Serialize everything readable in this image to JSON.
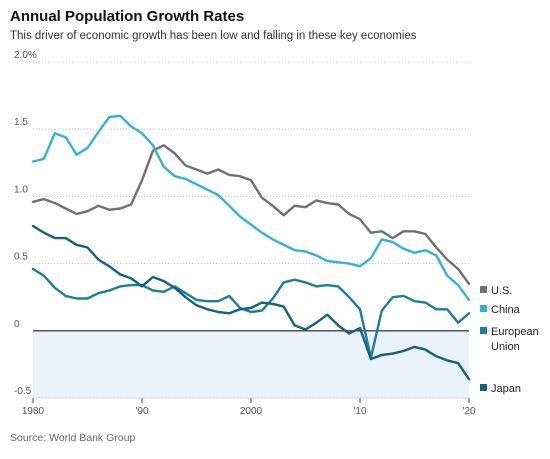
{
  "header": {
    "title": "Annual Population Growth Rates",
    "subtitle": "This driver of economic growth has been low and falling in these key economies"
  },
  "footer": {
    "source": "Source: World Bank Group"
  },
  "colors": {
    "US": "#707070",
    "China": "#33b2d6",
    "EU": "#1c7e9a",
    "Japan": "#17607f",
    "negative_shade": "#eaf2fb",
    "grid": "#b8b8b8",
    "zero": "#1e1e1e"
  },
  "chart_data": {
    "type": "line",
    "title": "Annual Population Growth Rates",
    "subtitle": "This driver of economic growth has been low and falling in these key economies",
    "xlim": [
      1980,
      2020
    ],
    "ylim": [
      -0.5,
      2.0
    ],
    "x_ticks": [
      {
        "value": 1980,
        "label": "1980"
      },
      {
        "value": 1990,
        "label": "'90"
      },
      {
        "value": 2000,
        "label": "2000"
      },
      {
        "value": 2010,
        "label": "'10"
      },
      {
        "value": 2020,
        "label": "'20"
      }
    ],
    "y_ticks": [
      {
        "value": 2.0,
        "label": "2.0%"
      },
      {
        "value": 1.5,
        "label": "1.5"
      },
      {
        "value": 1.0,
        "label": "1.0"
      },
      {
        "value": 0.5,
        "label": "0.5"
      },
      {
        "value": 0,
        "label": "0"
      },
      {
        "value": -0.5,
        "label": "-0.5"
      }
    ],
    "grid": "horizontal",
    "legend_position": "right",
    "series": [
      {
        "key": "US",
        "name": "U.S.",
        "legend_lines": [
          "U.S."
        ],
        "x": [
          1980,
          1981,
          1982,
          1983,
          1984,
          1985,
          1986,
          1987,
          1988,
          1989,
          1990,
          1991,
          1992,
          1993,
          1994,
          1995,
          1996,
          1997,
          1998,
          1999,
          2000,
          2001,
          2002,
          2003,
          2004,
          2005,
          2006,
          2007,
          2008,
          2009,
          2010,
          2011,
          2012,
          2013,
          2014,
          2015,
          2016,
          2017,
          2018,
          2019,
          2020
        ],
        "y": [
          0.96,
          0.98,
          0.95,
          0.91,
          0.87,
          0.89,
          0.93,
          0.9,
          0.91,
          0.94,
          1.12,
          1.34,
          1.38,
          1.32,
          1.23,
          1.2,
          1.17,
          1.2,
          1.16,
          1.15,
          1.12,
          0.99,
          0.93,
          0.86,
          0.93,
          0.92,
          0.97,
          0.95,
          0.94,
          0.87,
          0.83,
          0.73,
          0.74,
          0.69,
          0.74,
          0.74,
          0.72,
          0.62,
          0.53,
          0.46,
          0.35
        ]
      },
      {
        "key": "China",
        "name": "China",
        "legend_lines": [
          "China"
        ],
        "x": [
          1980,
          1981,
          1982,
          1983,
          1984,
          1985,
          1986,
          1987,
          1988,
          1989,
          1990,
          1991,
          1992,
          1993,
          1994,
          1995,
          1996,
          1997,
          1998,
          1999,
          2000,
          2001,
          2002,
          2003,
          2004,
          2005,
          2006,
          2007,
          2008,
          2009,
          2010,
          2011,
          2012,
          2013,
          2014,
          2015,
          2016,
          2017,
          2018,
          2019,
          2020
        ],
        "y": [
          1.26,
          1.28,
          1.47,
          1.44,
          1.31,
          1.36,
          1.48,
          1.59,
          1.6,
          1.52,
          1.47,
          1.38,
          1.22,
          1.15,
          1.13,
          1.09,
          1.05,
          1.01,
          0.93,
          0.85,
          0.79,
          0.73,
          0.68,
          0.64,
          0.6,
          0.59,
          0.56,
          0.52,
          0.51,
          0.5,
          0.48,
          0.54,
          0.68,
          0.66,
          0.61,
          0.58,
          0.6,
          0.56,
          0.41,
          0.34,
          0.23
        ]
      },
      {
        "key": "EU",
        "name": "European Union",
        "legend_lines": [
          "European",
          "Union"
        ],
        "x": [
          1980,
          1981,
          1982,
          1983,
          1984,
          1985,
          1986,
          1987,
          1988,
          1989,
          1990,
          1991,
          1992,
          1993,
          1994,
          1995,
          1996,
          1997,
          1998,
          1999,
          2000,
          2001,
          2002,
          2003,
          2004,
          2005,
          2006,
          2007,
          2008,
          2009,
          2010,
          2011,
          2012,
          2013,
          2014,
          2015,
          2016,
          2017,
          2018,
          2019,
          2020
        ],
        "y": [
          0.46,
          0.41,
          0.32,
          0.26,
          0.24,
          0.24,
          0.28,
          0.3,
          0.33,
          0.34,
          0.34,
          0.3,
          0.29,
          0.33,
          0.28,
          0.23,
          0.22,
          0.22,
          0.26,
          0.17,
          0.14,
          0.15,
          0.24,
          0.36,
          0.38,
          0.36,
          0.33,
          0.34,
          0.33,
          0.25,
          0.16,
          -0.2,
          0.15,
          0.25,
          0.26,
          0.22,
          0.21,
          0.16,
          0.16,
          0.06,
          0.13
        ]
      },
      {
        "key": "Japan",
        "name": "Japan",
        "legend_lines": [
          "Japan"
        ],
        "x": [
          1980,
          1981,
          1982,
          1983,
          1984,
          1985,
          1986,
          1987,
          1988,
          1989,
          1990,
          1991,
          1992,
          1993,
          1994,
          1995,
          1996,
          1997,
          1998,
          1999,
          2000,
          2001,
          2002,
          2003,
          2004,
          2005,
          2006,
          2007,
          2008,
          2009,
          2010,
          2011,
          2012,
          2013,
          2014,
          2015,
          2016,
          2017,
          2018,
          2019,
          2020
        ],
        "y": [
          0.78,
          0.73,
          0.69,
          0.69,
          0.64,
          0.62,
          0.53,
          0.48,
          0.42,
          0.39,
          0.33,
          0.4,
          0.37,
          0.32,
          0.25,
          0.19,
          0.16,
          0.14,
          0.13,
          0.16,
          0.17,
          0.21,
          0.2,
          0.18,
          0.04,
          0.01,
          0.06,
          0.12,
          0.04,
          -0.02,
          0.02,
          -0.21,
          -0.18,
          -0.17,
          -0.15,
          -0.12,
          -0.14,
          -0.19,
          -0.22,
          -0.24,
          -0.36
        ]
      }
    ]
  }
}
